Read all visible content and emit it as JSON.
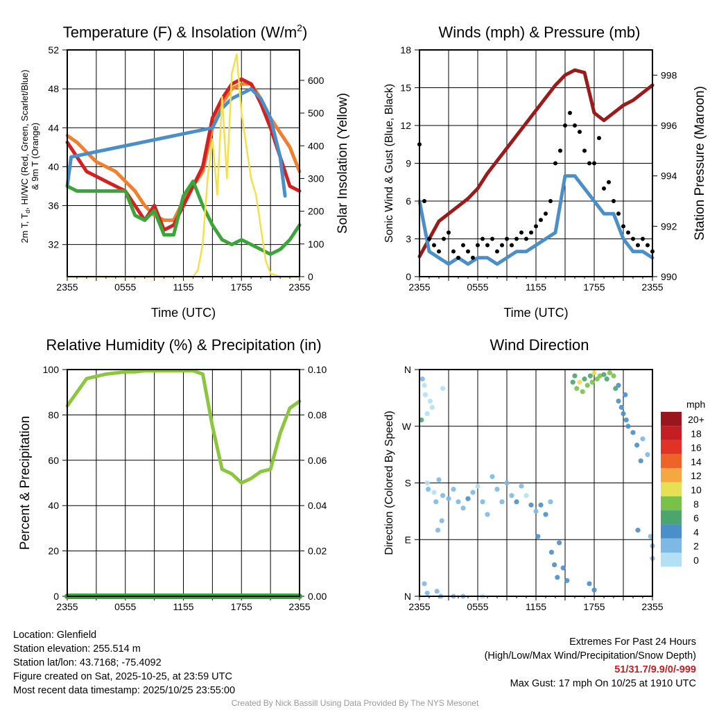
{
  "chart_data": [
    {
      "type": "line",
      "title": "Temperature (F) & Insolation (W/m²)",
      "xlabel": "Time (UTC)",
      "ylabel_parts": [
        "2m T, T",
        "d",
        ", HI/WC (Red, Green, Scarlet/Blue)"
      ],
      "ylabel_line2": "& 9m T (Orange)",
      "ylabel_right": "Solar Insolation (Yellow)",
      "xtick_labels": [
        "2355",
        "0555",
        "1155",
        "1755",
        "2355"
      ],
      "xlim_hours": [
        0,
        24
      ],
      "ylim": [
        28.7,
        52
      ],
      "yticks": [
        32,
        36,
        40,
        44,
        48,
        52
      ],
      "ylim_right": [
        0,
        693
      ],
      "yticks_right": [
        0,
        100,
        200,
        300,
        400,
        500,
        600
      ],
      "series": [
        {
          "name": "9m T",
          "axis": "left",
          "color": "#f07f2e",
          "hours": [
            0,
            1,
            2,
            3,
            4,
            5,
            6,
            7,
            8,
            9,
            10,
            11,
            12,
            13,
            14,
            15,
            16,
            17,
            18,
            19,
            20,
            21,
            22,
            23,
            24
          ],
          "values": [
            43.2,
            42.5,
            41.5,
            40.5,
            40,
            39.5,
            38.5,
            37.5,
            36,
            35,
            34.5,
            34.5,
            36.5,
            38,
            39.5,
            44,
            46.5,
            48,
            48.5,
            48.5,
            47,
            45,
            43.5,
            42,
            39.5
          ]
        },
        {
          "name": "2m T",
          "axis": "left",
          "color": "#d42020",
          "hours": [
            0,
            1,
            2,
            3,
            4,
            5,
            6,
            7,
            8,
            9,
            10,
            11,
            12,
            13,
            14,
            15,
            16,
            17,
            18,
            19,
            20,
            21,
            22,
            23,
            24
          ],
          "values": [
            42.5,
            41,
            39.5,
            39,
            38.5,
            38,
            37.5,
            36,
            34.5,
            36,
            33.5,
            34,
            36,
            38,
            40,
            45,
            47,
            48.5,
            49,
            48.5,
            46.5,
            44,
            41,
            38,
            37.5
          ]
        },
        {
          "name": "Wind Chill",
          "axis": "left",
          "color": "#4a8fc8",
          "hours": [
            0,
            0.4,
            15,
            16,
            17,
            18,
            19,
            20,
            21,
            22,
            22.5
          ],
          "values": [
            38,
            41,
            44,
            46,
            47,
            47.5,
            48,
            47,
            45,
            41,
            37
          ]
        },
        {
          "name": "Dew Point",
          "axis": "left",
          "color": "#3aa63a",
          "hours": [
            0,
            1,
            2,
            3,
            4,
            5,
            6,
            7,
            8,
            9,
            10,
            11,
            12,
            13,
            14,
            15,
            16,
            17,
            18,
            19,
            20,
            21,
            22,
            23,
            24
          ],
          "values": [
            38,
            37.5,
            37.5,
            37.5,
            37.5,
            37.5,
            37.5,
            35,
            34.5,
            35.5,
            33,
            33,
            37,
            38.5,
            36,
            34,
            32.5,
            32,
            32.5,
            32,
            31.5,
            31,
            31.5,
            32.5,
            34
          ]
        },
        {
          "name": "Solar Insolation",
          "axis": "right",
          "color": "#f5e04a",
          "hours": [
            0,
            13,
            13.5,
            14,
            14.5,
            15,
            15.5,
            16,
            16.5,
            17,
            17.5,
            18,
            18.5,
            19,
            19.5,
            20,
            20.5,
            21,
            22,
            24
          ],
          "values": [
            0,
            0,
            20,
            100,
            300,
            420,
            250,
            550,
            300,
            620,
            680,
            500,
            400,
            300,
            250,
            150,
            50,
            10,
            0,
            0
          ]
        }
      ]
    },
    {
      "type": "line",
      "title": "Winds (mph) & Pressure (mb)",
      "xlabel": "Time (UTC)",
      "ylabel": "Sonic Wind & Gust (Blue, Black)",
      "ylabel_right": "Station Pressure (Maroon)",
      "xtick_labels": [
        "2355",
        "0555",
        "1155",
        "1755",
        "2355"
      ],
      "xlim_hours": [
        0,
        24
      ],
      "ylim": [
        0,
        18
      ],
      "yticks": [
        0,
        3,
        6,
        9,
        12,
        15,
        18
      ],
      "ylim_right": [
        990,
        999
      ],
      "yticks_right": [
        990,
        992,
        994,
        996,
        998
      ],
      "series": [
        {
          "name": "Station Pressure",
          "axis": "right",
          "color": "#9b1a1a",
          "hours": [
            0,
            1,
            2,
            3,
            4,
            5,
            6,
            7,
            8,
            9,
            10,
            11,
            12,
            13,
            14,
            15,
            16,
            17,
            18,
            19,
            20,
            21,
            22,
            23,
            24
          ],
          "values": [
            990.8,
            991.5,
            992.2,
            992.5,
            992.8,
            993.1,
            993.5,
            994.1,
            994.6,
            995.1,
            995.6,
            996.1,
            996.6,
            997.1,
            997.6,
            998.0,
            998.2,
            998.1,
            996.5,
            996.2,
            996.5,
            996.8,
            997.0,
            997.3,
            997.6
          ]
        },
        {
          "name": "Sonic Wind",
          "axis": "left",
          "color": "#4a8fc8",
          "hours": [
            0,
            1,
            2,
            3,
            4,
            5,
            6,
            7,
            8,
            9,
            10,
            11,
            12,
            13,
            14,
            15,
            16,
            17,
            18,
            19,
            20,
            21,
            22,
            23,
            24
          ],
          "values": [
            6,
            2,
            1.5,
            1,
            1.5,
            1,
            1.5,
            1.5,
            1,
            1.5,
            2,
            2,
            2.5,
            3,
            3.5,
            8,
            8,
            7,
            6,
            5,
            5,
            3,
            2,
            2,
            1.5
          ]
        },
        {
          "name": "Gust",
          "axis": "left",
          "color": "#000000",
          "style": "dots",
          "hours": [
            0,
            0.5,
            1,
            1.5,
            2,
            2.5,
            3,
            3.5,
            4,
            4.5,
            5,
            5.5,
            6,
            6.5,
            7,
            7.5,
            8,
            8.5,
            9,
            9.5,
            10,
            10.5,
            11,
            11.5,
            12,
            12.5,
            13,
            13.5,
            14,
            14.5,
            15,
            15.5,
            16,
            16.5,
            17,
            17.5,
            18,
            18.5,
            19,
            19.5,
            20,
            20.5,
            21,
            21.5,
            22,
            22.5,
            23,
            23.5,
            24
          ],
          "values": [
            10.5,
            6,
            3,
            2.5,
            2,
            3,
            3.5,
            2,
            1.5,
            2.5,
            2,
            1.5,
            2.5,
            3,
            2.5,
            3,
            2,
            2.5,
            3,
            2.5,
            3,
            3.5,
            3,
            3.5,
            4,
            4.5,
            5,
            6,
            9,
            10,
            12,
            13,
            12,
            11.5,
            10,
            9,
            9,
            11,
            7,
            7.5,
            6,
            5,
            4,
            3.5,
            3,
            2.5,
            3,
            2.5,
            2
          ]
        }
      ]
    },
    {
      "type": "line",
      "title": "Relative Humidity (%) & Precipitation (in)",
      "ylabel": "Percent & Precipitation",
      "xtick_labels": [
        "2355",
        "0555",
        "1155",
        "1755",
        "2355"
      ],
      "xlim_hours": [
        0,
        24
      ],
      "ylim": [
        0,
        100
      ],
      "yticks": [
        0,
        20,
        40,
        60,
        80,
        100
      ],
      "ylim_right": [
        0,
        0.1
      ],
      "yticks_right": [
        "0.00",
        "0.02",
        "0.04",
        "0.06",
        "0.08",
        "0.10"
      ],
      "series": [
        {
          "name": "Relative Humidity",
          "axis": "left",
          "color": "#8cc63f",
          "hours": [
            0,
            1,
            2,
            3,
            4,
            5,
            6,
            7,
            8,
            9,
            10,
            11,
            12,
            13,
            14,
            15,
            16,
            17,
            18,
            19,
            20,
            21,
            22,
            23,
            24
          ],
          "values": [
            84,
            90,
            96,
            97,
            98,
            98.5,
            99,
            99,
            99.5,
            99.5,
            99.5,
            99.5,
            99.5,
            99.5,
            98,
            75,
            56,
            54,
            50,
            52,
            55,
            56,
            72,
            83,
            86
          ]
        },
        {
          "name": "Precipitation",
          "axis": "right",
          "color": "#3aa63a",
          "hours": [
            0,
            24
          ],
          "values": [
            0,
            0
          ]
        }
      ]
    },
    {
      "type": "scatter",
      "title": "Wind Direction",
      "ylabel": "Direction (Colored By Speed)",
      "xtick_labels": [
        "2355",
        "0555",
        "1155",
        "1755",
        "2355"
      ],
      "xlim_hours": [
        0,
        24
      ],
      "ylim_deg": [
        0,
        360
      ],
      "ytick_labels": [
        "N",
        "E",
        "S",
        "W",
        "N"
      ],
      "legend": {
        "title": "mph",
        "labels": [
          "20+",
          "18",
          "16",
          "14",
          "12",
          "10",
          "8",
          "6",
          "4",
          "2",
          "0"
        ],
        "colors": [
          "#9b151c",
          "#c41e24",
          "#df3325",
          "#ee6428",
          "#f5a742",
          "#e6e055",
          "#7ac14a",
          "#4aa56e",
          "#4a8fc8",
          "#7db9e5",
          "#b3e0f5"
        ],
        "placement": "right"
      },
      "points": [
        [
          0.3,
          345,
          2
        ],
        [
          0.5,
          335,
          1
        ],
        [
          0.6,
          320,
          1
        ],
        [
          1.1,
          310,
          1
        ],
        [
          0.8,
          290,
          1
        ],
        [
          1.3,
          300,
          1
        ],
        [
          2.4,
          330,
          1
        ],
        [
          0.2,
          280,
          6
        ],
        [
          0.8,
          180,
          1
        ],
        [
          0.9,
          170,
          2
        ],
        [
          1.5,
          165,
          1
        ],
        [
          1.7,
          150,
          2
        ],
        [
          2,
          185,
          3
        ],
        [
          2.4,
          160,
          2
        ],
        [
          3,
          155,
          3
        ],
        [
          3.5,
          170,
          3
        ],
        [
          4,
          150,
          3
        ],
        [
          4.5,
          140,
          2
        ],
        [
          5,
          155,
          4
        ],
        [
          5.5,
          165,
          2
        ],
        [
          6,
          175,
          1
        ],
        [
          6.5,
          150,
          3
        ],
        [
          7,
          130,
          3
        ],
        [
          7.5,
          190,
          2
        ],
        [
          8,
          170,
          2
        ],
        [
          8.5,
          150,
          3
        ],
        [
          9,
          180,
          3
        ],
        [
          9.5,
          160,
          2
        ],
        [
          10,
          150,
          4
        ],
        [
          10.5,
          175,
          2
        ],
        [
          11,
          160,
          1
        ],
        [
          11.5,
          145,
          4
        ],
        [
          12,
          135,
          3
        ],
        [
          12.5,
          145,
          4
        ],
        [
          13,
          130,
          5
        ],
        [
          13.5,
          150,
          3
        ],
        [
          12.2,
          95,
          4
        ],
        [
          13.6,
          70,
          4
        ],
        [
          13.9,
          50,
          4
        ],
        [
          14.2,
          30,
          4
        ],
        [
          14.4,
          85,
          4
        ],
        [
          14.8,
          45,
          4
        ],
        [
          15.2,
          25,
          4
        ],
        [
          0.5,
          20,
          3
        ],
        [
          0.8,
          5,
          2
        ],
        [
          1.8,
          8,
          2
        ],
        [
          2.2,
          0,
          2
        ],
        [
          3.5,
          0,
          2
        ],
        [
          4.5,
          0,
          2
        ],
        [
          6.5,
          0,
          1
        ],
        [
          1.9,
          105,
          3
        ],
        [
          2.3,
          120,
          3
        ],
        [
          15.8,
          340,
          6
        ],
        [
          16,
          350,
          6
        ],
        [
          16.2,
          330,
          8
        ],
        [
          16.5,
          340,
          10
        ],
        [
          16.8,
          325,
          9
        ],
        [
          17,
          345,
          7
        ],
        [
          17.3,
          335,
          8
        ],
        [
          17.6,
          350,
          7
        ],
        [
          17.8,
          340,
          9
        ],
        [
          18,
          355,
          10
        ],
        [
          18.3,
          345,
          9
        ],
        [
          18.6,
          350,
          8
        ],
        [
          19,
          352,
          7
        ],
        [
          19.3,
          345,
          6
        ],
        [
          19.6,
          355,
          8
        ],
        [
          20,
          350,
          8
        ],
        [
          20.2,
          330,
          6
        ],
        [
          20.5,
          310,
          5
        ],
        [
          20.8,
          300,
          4
        ],
        [
          21,
          290,
          5
        ],
        [
          21.3,
          280,
          4
        ],
        [
          21.5,
          270,
          4
        ],
        [
          22,
          260,
          4
        ],
        [
          22.4,
          240,
          4
        ],
        [
          22.8,
          215,
          4
        ],
        [
          23,
          250,
          3
        ],
        [
          23.5,
          225,
          3
        ],
        [
          23.8,
          95,
          3
        ],
        [
          24,
          80,
          3
        ],
        [
          24,
          60,
          3
        ],
        [
          17.5,
          20,
          5
        ],
        [
          18,
          10,
          5
        ],
        [
          22.5,
          105,
          4
        ],
        [
          20.5,
          335,
          5
        ],
        [
          21.2,
          320,
          4
        ]
      ]
    }
  ],
  "info": {
    "location": "Location: Glenfield",
    "elevation": "Station elevation: 255.514 m",
    "latlon": "Station lat/lon: 43.7168; -75.4092",
    "created": "Figure created on Sat, 2025-10-25, at 23:59 UTC",
    "recent": "Most recent data timestamp: 2025/10/25 23:55:00"
  },
  "extremes": {
    "title": "Extremes For Past 24 Hours",
    "subtitle": "(High/Low/Max Wind/Precipitation/Snow Depth)",
    "values": "51/31.7/9.9/0/-999",
    "max_gust": "Max Gust: 17 mph On 10/25 at 1910 UTC"
  },
  "credit": "Created By Nick Bassill Using Data Provided By The NYS Mesonet"
}
